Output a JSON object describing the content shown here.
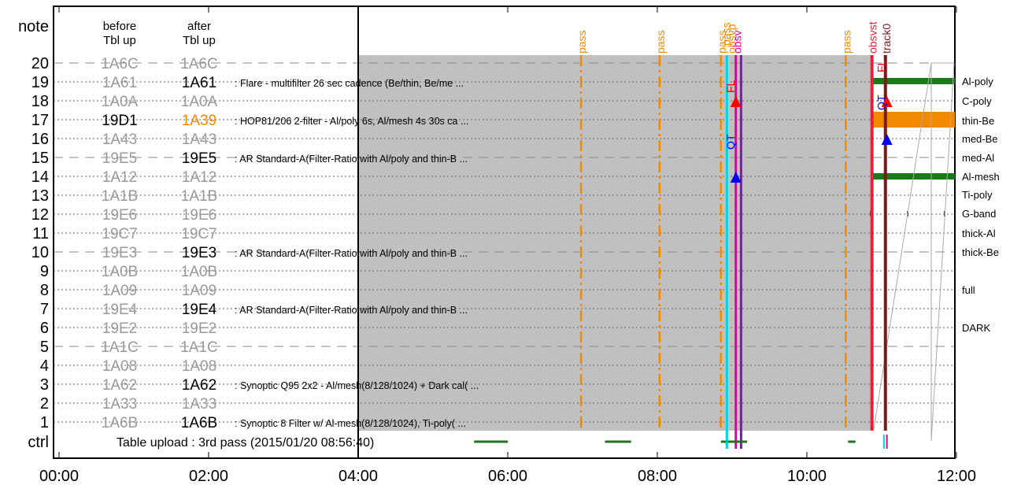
{
  "chart_data": {
    "type": "timeline",
    "title": "",
    "header": {
      "note": "note",
      "before": [
        "before",
        "Tbl up"
      ],
      "after": [
        "after",
        "Tbl up"
      ]
    },
    "x_ticks": [
      "00:00",
      "02:00",
      "04:00",
      "06:00",
      "08:00",
      "10:00",
      "12:00"
    ],
    "xlim_hours": [
      0,
      12.3
    ],
    "upload_time_hours": 4.0,
    "rows": [
      {
        "num": "20",
        "before": "1A6C",
        "after": "1A6C",
        "after_changed": false,
        "prog": ""
      },
      {
        "num": "19",
        "before": "1A61",
        "after": "1A61",
        "after_changed": true,
        "prog": ": Flare - multifilter 26 sec cadence (Be/thin, Be/me ..."
      },
      {
        "num": "18",
        "before": "1A0A",
        "after": "1A0A",
        "after_changed": false,
        "prog": ""
      },
      {
        "num": "17",
        "before": "19D1",
        "after": "1A39",
        "after_changed": true,
        "before_bold": true,
        "after_color": "#f28a00",
        "prog": ": HOP81/206 2-filter - Al/poly 6s, Al/mesh 4s 30s ca ..."
      },
      {
        "num": "16",
        "before": "1A43",
        "after": "1A43",
        "after_changed": false,
        "prog": ""
      },
      {
        "num": "15",
        "before": "19E5",
        "after": "19E5",
        "after_changed": true,
        "prog": ": AR Standard-A(Filter-Ratio with Al/poly and thin-B ..."
      },
      {
        "num": "14",
        "before": "1A12",
        "after": "1A12",
        "after_changed": false,
        "prog": ""
      },
      {
        "num": "13",
        "before": "1A1B",
        "after": "1A1B",
        "after_changed": false,
        "prog": ""
      },
      {
        "num": "12",
        "before": "19E6",
        "after": "19E6",
        "after_changed": false,
        "prog": ""
      },
      {
        "num": "11",
        "before": "19C7",
        "after": "19C7",
        "after_changed": false,
        "prog": ""
      },
      {
        "num": "10",
        "before": "19E3",
        "after": "19E3",
        "after_changed": true,
        "prog": ": AR Standard-A(Filter-Ratio with Al/poly and thin-B ..."
      },
      {
        "num": "9",
        "before": "1A0B",
        "after": "1A0B",
        "after_changed": false,
        "prog": ""
      },
      {
        "num": "8",
        "before": "1A09",
        "after": "1A09",
        "after_changed": false,
        "prog": ""
      },
      {
        "num": "7",
        "before": "19E4",
        "after": "19E4",
        "after_changed": true,
        "prog": ": AR Standard-A(Filter-Ratio with Al/poly and thin-B ..."
      },
      {
        "num": "6",
        "before": "19E2",
        "after": "19E2",
        "after_changed": false,
        "prog": ""
      },
      {
        "num": "5",
        "before": "1A1C",
        "after": "1A1C",
        "after_changed": false,
        "prog": ""
      },
      {
        "num": "4",
        "before": "1A08",
        "after": "1A08",
        "after_changed": false,
        "prog": ""
      },
      {
        "num": "3",
        "before": "1A62",
        "after": "1A62",
        "after_changed": true,
        "prog": ": Synoptic Q95 2x2 - Al/mesh(8/128/1024) + Dark cal( ..."
      },
      {
        "num": "2",
        "before": "1A33",
        "after": "1A33",
        "after_changed": false,
        "prog": ""
      },
      {
        "num": "1",
        "before": "1A6B",
        "after": "1A6B",
        "after_changed": true,
        "prog": ": Synoptic 8 Filter w/ Al-mesh(8/128/1024), Ti-poly( ..."
      }
    ],
    "ctrl_label": "ctrl",
    "table_upload_text": "Table upload : 3rd pass (2015/01/20 08:56:40)",
    "filters": [
      "Al-poly",
      "C-poly",
      "thin-Be",
      "med-Be",
      "med-Al",
      "Al-mesh",
      "Ti-poly",
      "G-band",
      "thick-Al",
      "thick-Be",
      "full",
      "DARK"
    ],
    "gray_region_hours": [
      4.0,
      10.85
    ],
    "pass_events": [
      {
        "label": "pass",
        "t": 6.98
      },
      {
        "label": "pass",
        "t": 8.03
      },
      {
        "label": "pass",
        "t": 8.85
      },
      {
        "label": "pass",
        "t": 10.52
      }
    ],
    "marker_labels": {
      "pass2": "pass",
      "obsvp": "obsvp",
      "obsv": "obsv",
      "fl": "FL",
      "qt": "QT",
      "obsvst": "obsvst",
      "track0": "track0"
    },
    "vertical_lines": [
      {
        "t": 8.93,
        "color": "#00d5e0"
      },
      {
        "t": 9.05,
        "color": "#e000a0"
      },
      {
        "t": 9.12,
        "color": "#6a2a8a"
      },
      {
        "t": 10.87,
        "color": "#e0223a"
      },
      {
        "t": 11.05,
        "color": "#7a1a1a"
      }
    ],
    "triangles": [
      {
        "t": 9.05,
        "row": 18,
        "color": "#ff0000"
      },
      {
        "t": 9.05,
        "row": 14,
        "color": "#0000ff"
      },
      {
        "t": 11.07,
        "row": 18,
        "color": "#ff0000"
      },
      {
        "t": 11.07,
        "row": 16,
        "color": "#0000ff"
      }
    ],
    "ctrl_segments": [
      {
        "t0": 5.55,
        "t1": 6.0
      },
      {
        "t0": 7.3,
        "t1": 7.65
      },
      {
        "t0": 8.85,
        "t1": 9.2
      },
      {
        "t0": 10.55,
        "t1": 10.65
      }
    ]
  }
}
